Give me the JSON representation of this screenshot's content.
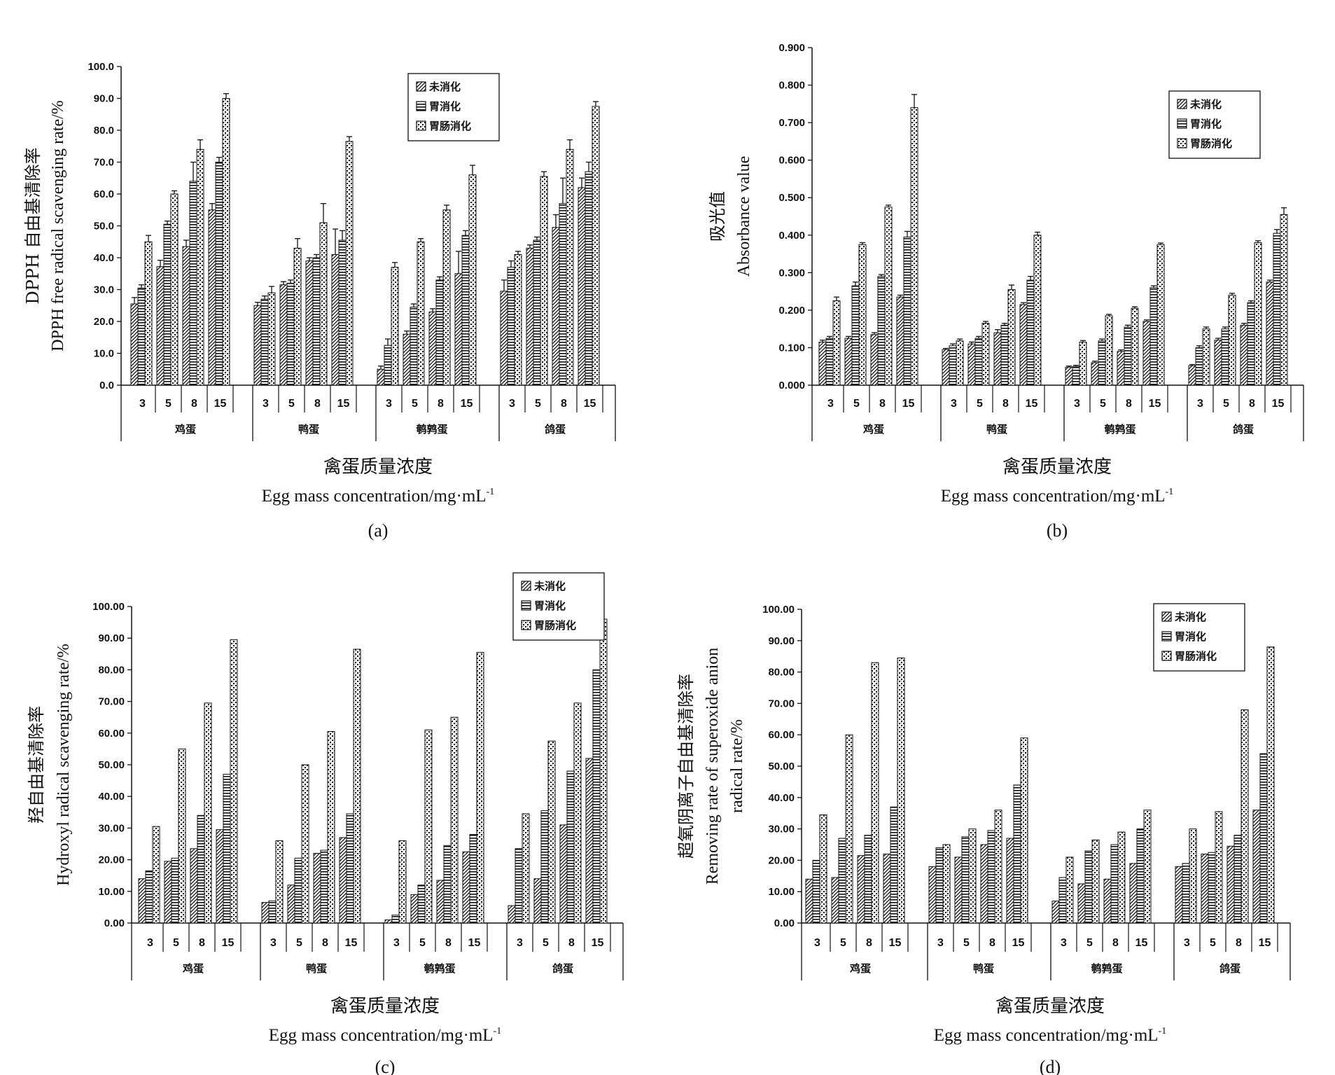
{
  "legend": [
    "未消化",
    "胃消化",
    "胃肠消化"
  ],
  "concentrations": [
    "3",
    "5",
    "8",
    "15"
  ],
  "groups": [
    "鸡蛋",
    "鸭蛋",
    "鹌鹑蛋",
    "鸽蛋"
  ],
  "xlabel_cn": "禽蛋质量浓度",
  "xlabel_en": "Egg mass concentration/mg·mL",
  "xlabel_sup": "-1",
  "chart_data": [
    {
      "panel": "(a)",
      "type": "bar",
      "ylabel_cn": "DPPH 自由基清除率",
      "ylabel_en": "DPPH free radical scavenging rate/%",
      "ylim": [
        0,
        100
      ],
      "ytick_step": 10,
      "ytick_decimals": 1,
      "series": [
        {
          "name": "未消化",
          "values": [
            25.5,
            37.2,
            43.5,
            55.0,
            25.0,
            31.5,
            39.0,
            41.0,
            5.0,
            16.0,
            23.0,
            35.0,
            29.5,
            43.0,
            49.5,
            62.0
          ]
        },
        {
          "name": "胃消化",
          "values": [
            30.5,
            50.5,
            64.0,
            70.0,
            27.0,
            32.0,
            40.0,
            45.5,
            12.5,
            24.5,
            33.0,
            47.0,
            37.0,
            45.5,
            57.0,
            67.0
          ]
        },
        {
          "name": "胃肠消化",
          "values": [
            45.0,
            60.0,
            74.0,
            90.0,
            29.0,
            43.0,
            51.0,
            76.5,
            37.0,
            45.0,
            55.0,
            66.0,
            41.0,
            65.5,
            74.0,
            87.5
          ]
        }
      ],
      "errors": [
        [
          2.0,
          2.0,
          2.0,
          2.0,
          1.0,
          1.0,
          1.0,
          8.0,
          1.0,
          1.0,
          1.0,
          7.0,
          3.5,
          1.0,
          4.0,
          3.0
        ],
        [
          1.0,
          1.0,
          6.0,
          1.5,
          1.0,
          1.0,
          1.0,
          3.0,
          2.0,
          1.0,
          1.0,
          1.5,
          2.0,
          1.0,
          8.0,
          3.0
        ],
        [
          2.0,
          1.0,
          3.0,
          1.5,
          2.0,
          3.0,
          6.0,
          1.5,
          1.5,
          1.0,
          1.5,
          3.0,
          1.0,
          1.5,
          3.0,
          1.5
        ]
      ]
    },
    {
      "panel": "(b)",
      "type": "bar",
      "ylabel_cn": "吸光值",
      "ylabel_en": "Absorbance value",
      "ylim": [
        0,
        0.9
      ],
      "ytick_step": 0.1,
      "ytick_decimals": 3,
      "series": [
        {
          "name": "未消化",
          "values": [
            0.115,
            0.125,
            0.135,
            0.235,
            0.095,
            0.11,
            0.14,
            0.215,
            0.048,
            0.06,
            0.09,
            0.17,
            0.052,
            0.12,
            0.16,
            0.275
          ]
        },
        {
          "name": "胃消化",
          "values": [
            0.125,
            0.265,
            0.29,
            0.395,
            0.105,
            0.125,
            0.16,
            0.28,
            0.05,
            0.118,
            0.155,
            0.26,
            0.1,
            0.15,
            0.22,
            0.405
          ]
        },
        {
          "name": "胃肠消化",
          "values": [
            0.225,
            0.375,
            0.475,
            0.74,
            0.118,
            0.165,
            0.255,
            0.4,
            0.115,
            0.185,
            0.205,
            0.375,
            0.15,
            0.24,
            0.38,
            0.455
          ]
        }
      ],
      "errors": [
        [
          0.005,
          0.005,
          0.005,
          0.005,
          0.003,
          0.005,
          0.008,
          0.005,
          0.003,
          0.004,
          0.004,
          0.004,
          0.003,
          0.005,
          0.005,
          0.005
        ],
        [
          0.005,
          0.01,
          0.005,
          0.015,
          0.005,
          0.005,
          0.005,
          0.01,
          0.003,
          0.005,
          0.005,
          0.005,
          0.005,
          0.005,
          0.005,
          0.01
        ],
        [
          0.01,
          0.005,
          0.005,
          0.035,
          0.005,
          0.005,
          0.012,
          0.008,
          0.004,
          0.004,
          0.004,
          0.004,
          0.005,
          0.005,
          0.005,
          0.018
        ]
      ]
    },
    {
      "panel": "(c)",
      "type": "bar",
      "ylabel_cn": "羟自由基清除率",
      "ylabel_en": "Hydroxyl radical scavenging rate/%",
      "ylim": [
        0,
        100
      ],
      "ytick_step": 10,
      "ytick_decimals": 2,
      "series": [
        {
          "name": "未消化",
          "values": [
            14.0,
            19.5,
            23.5,
            29.5,
            6.5,
            12.0,
            22.0,
            27.0,
            1.0,
            9.0,
            13.5,
            22.5,
            5.5,
            14.0,
            31.0,
            52.0
          ]
        },
        {
          "name": "胃消化",
          "values": [
            16.5,
            20.5,
            34.0,
            47.0,
            7.0,
            20.5,
            23.0,
            34.5,
            2.5,
            12.0,
            24.5,
            28.0,
            23.5,
            35.5,
            48.0,
            80.0
          ]
        },
        {
          "name": "胃肠消化",
          "values": [
            30.5,
            55.0,
            69.5,
            89.5,
            26.0,
            50.0,
            60.5,
            86.5,
            26.0,
            61.0,
            65.0,
            85.5,
            34.5,
            57.5,
            69.5,
            96.0
          ]
        }
      ]
    },
    {
      "panel": "(d)",
      "type": "bar",
      "ylabel_cn": "超氧阴离子自由基清除率",
      "ylabel_en1": "Removing rate of superoxide anion",
      "ylabel_en2": "radical rate/%",
      "ylim": [
        0,
        100
      ],
      "ytick_step": 10,
      "ytick_decimals": 2,
      "series": [
        {
          "name": "未消化",
          "values": [
            14.0,
            14.5,
            21.5,
            22.0,
            18.0,
            21.0,
            25.0,
            27.0,
            7.0,
            12.5,
            14.0,
            19.0,
            18.0,
            22.0,
            24.5,
            36.0
          ]
        },
        {
          "name": "胃消化",
          "values": [
            20.0,
            27.0,
            28.0,
            37.0,
            24.0,
            27.5,
            29.5,
            44.0,
            14.5,
            23.0,
            25.0,
            30.0,
            19.0,
            22.5,
            28.0,
            54.0
          ]
        },
        {
          "name": "胃肠消化",
          "values": [
            34.5,
            60.0,
            83.0,
            84.5,
            25.0,
            30.0,
            36.0,
            59.0,
            21.0,
            26.5,
            29.0,
            36.0,
            30.0,
            35.5,
            68.0,
            88.0
          ]
        }
      ]
    }
  ]
}
